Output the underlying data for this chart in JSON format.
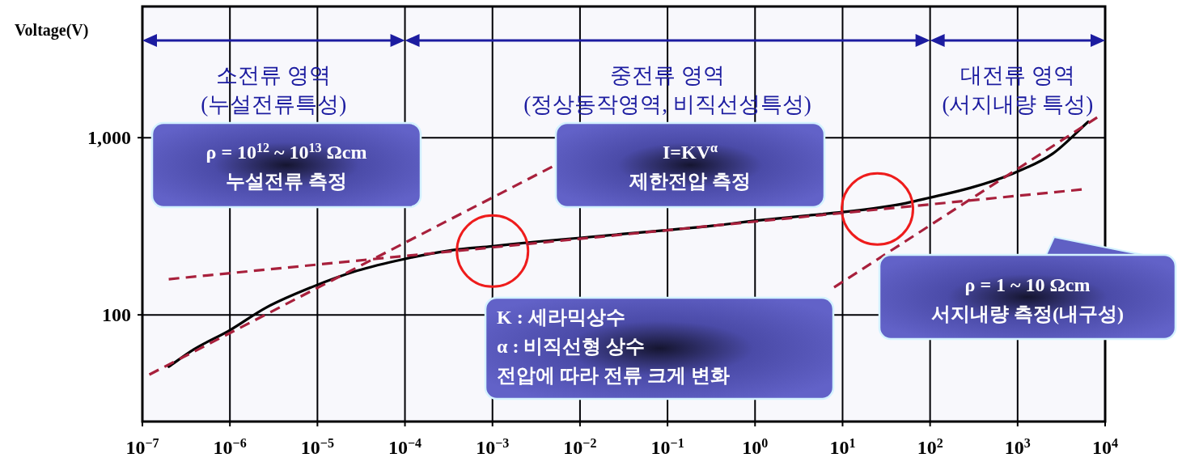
{
  "chart_data": {
    "type": "line",
    "ylabel": "Voltage(V)",
    "log": "xy",
    "grid": true,
    "xlim": [
      1e-07,
      10000
    ],
    "ylim": [
      25,
      5500
    ],
    "xticks": [
      {
        "value": 1e-07,
        "label": "10$^{−7}$"
      },
      {
        "value": 1e-06,
        "label": "10$^{−6}$"
      },
      {
        "value": 1e-05,
        "label": "10$^{−5}$"
      },
      {
        "value": 0.0001,
        "label": "10$^{−4}$"
      },
      {
        "value": 0.001,
        "label": "10$^{−3}$"
      },
      {
        "value": 0.01,
        "label": "10$^{−2}$"
      },
      {
        "value": 0.1,
        "label": "10$^{−1}$"
      },
      {
        "value": 1,
        "label": "10$^{0}$"
      },
      {
        "value": 10,
        "label": "10$^{1}$"
      },
      {
        "value": 100,
        "label": "10$^{2}$"
      },
      {
        "value": 1000,
        "label": "10$^{3}$"
      },
      {
        "value": 10000,
        "label": "10$^{4}$"
      }
    ],
    "yticks": [
      100,
      {
        "value": 1000,
        "label": "1,000"
      }
    ],
    "series": [
      {
        "type": "line",
        "color": "#000000",
        "line_style": "solid",
        "x": [
          2e-07,
          3.9e-07,
          1e-06,
          2.6e-06,
          8.5e-06,
          2.8e-05,
          0.0001,
          0.00035,
          0.001,
          0.003,
          0.01,
          0.031,
          0.1,
          0.32,
          1.15,
          4.1,
          10,
          28,
          53,
          100,
          290,
          850,
          2500,
          6400
        ],
        "values": [
          51,
          64,
          82,
          110,
          143,
          177,
          207,
          232,
          244,
          258,
          272,
          286,
          301,
          318,
          342,
          364,
          380,
          405,
          427,
          459,
          521,
          623,
          811,
          1230
        ]
      },
      {
        "type": "line",
        "color": "#a8203c",
        "line_style": "dashed",
        "x": [
          1.2e-07,
          0.0048
        ],
        "values": [
          46,
          685
        ]
      },
      {
        "type": "line",
        "color": "#a8203c",
        "line_style": "dashed",
        "x": [
          2e-07,
          5400
        ],
        "values": [
          159,
          510
        ]
      },
      {
        "type": "line",
        "color": "#a8203c",
        "line_style": "dashed",
        "x": [
          8.0,
          8100
        ],
        "values": [
          143,
          1300
        ]
      },
      {
        "type": "scatter",
        "color": "#ee1c1c",
        "marker": "circle",
        "x": [
          0.001,
          25
        ],
        "values": [
          229,
          396
        ]
      }
    ],
    "bands": [
      {
        "axis": "x",
        "from": 1e-07,
        "to": 0.0001,
        "label": "소전류 영역\n(누설전류특성)",
        "color": "#1c1ca0"
      },
      {
        "axis": "x",
        "from": 0.0001,
        "to": 100,
        "label": "중전류 영역\n(정상동작영역, 비직선성특성)",
        "color": "#1c1ca0"
      },
      {
        "axis": "x",
        "from": 100,
        "to": 10000,
        "label": "대전류 영역\n(서지내량 특성)",
        "color": "#1c1ca0"
      }
    ],
    "annotations": [
      "ρ = 10$^{12}$ ~ 10$^{13}$ Ωcm\n누설전류 측정",
      "I=KV$^{α}$\n제한전압 측정",
      "K : 세라믹상수\nα : 비직선형 상수\n전압에 따라 전류 크게 변화",
      "ρ = 1 ~ 10 Ωcm\n서지내량 측정(내구성)"
    ]
  }
}
